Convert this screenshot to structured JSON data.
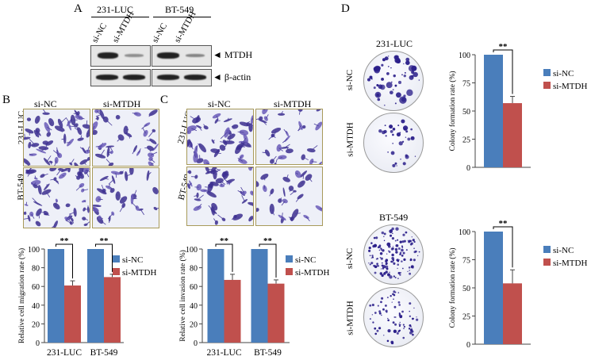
{
  "panels": {
    "a": "A",
    "b": "B",
    "c": "C",
    "d": "D"
  },
  "western": {
    "lines": [
      "231-LUC",
      "BT-549"
    ],
    "lanes": [
      "si-NC",
      "si-MTDH",
      "si-NC",
      "si-MTDH"
    ],
    "bands": [
      "◄ MTDH",
      "◄ β-actin"
    ]
  },
  "panel_b": {
    "conditions": [
      "si-NC",
      "si-MTDH"
    ],
    "rows": [
      "231-LUC",
      "BT-549"
    ]
  },
  "panel_c": {
    "conditions": [
      "si-NC",
      "si-MTDH"
    ],
    "rows": [
      "231-LUC",
      "BT-549"
    ]
  },
  "panel_d": {
    "top_title": "231-LUC",
    "bottom_title": "BT-549",
    "rows": [
      "si-NC",
      "si-MTDH"
    ]
  },
  "chart_data": [
    {
      "id": "migration",
      "type": "bar",
      "categories": [
        "231-LUC",
        "BT-549"
      ],
      "series": [
        {
          "name": "si-NC",
          "values": [
            100,
            100
          ],
          "errors": [
            0,
            0
          ],
          "color": "#4a7ebb"
        },
        {
          "name": "si-MTDH",
          "values": [
            61,
            70
          ],
          "errors": [
            5,
            3
          ],
          "color": "#c0504d"
        }
      ],
      "ylabel": "Relative  cell  migration  rate  (%)",
      "ylim": [
        0,
        100
      ],
      "yticks": [
        0,
        20,
        40,
        60,
        80,
        100
      ],
      "significance": [
        "**",
        "**"
      ]
    },
    {
      "id": "invasion",
      "type": "bar",
      "categories": [
        "231-LUC",
        "BT-549"
      ],
      "series": [
        {
          "name": "si-NC",
          "values": [
            100,
            100
          ],
          "errors": [
            0,
            0
          ],
          "color": "#4a7ebb"
        },
        {
          "name": "si-MTDH",
          "values": [
            67,
            63
          ],
          "errors": [
            6,
            4
          ],
          "color": "#c0504d"
        }
      ],
      "ylabel": "Relative  cell  invasion  rate  (%)",
      "ylim": [
        0,
        100
      ],
      "yticks": [
        0,
        20,
        40,
        60,
        80,
        100
      ],
      "significance": [
        "**",
        "**"
      ]
    },
    {
      "id": "colony_231",
      "type": "bar",
      "categories": [
        ""
      ],
      "series": [
        {
          "name": "si-NC",
          "values": [
            100
          ],
          "errors": [
            0
          ],
          "color": "#4a7ebb"
        },
        {
          "name": "si-MTDH",
          "values": [
            57
          ],
          "errors": [
            6
          ],
          "color": "#c0504d"
        }
      ],
      "ylabel": "Colony  formation  rate  (%)",
      "ylim": [
        0,
        100
      ],
      "yticks": [
        0,
        25,
        50,
        75,
        100
      ],
      "significance": [
        "**"
      ]
    },
    {
      "id": "colony_bt",
      "type": "bar",
      "categories": [
        ""
      ],
      "series": [
        {
          "name": "si-NC",
          "values": [
            100
          ],
          "errors": [
            0
          ],
          "color": "#4a7ebb"
        },
        {
          "name": "si-MTDH",
          "values": [
            54
          ],
          "errors": [
            12
          ],
          "color": "#c0504d"
        }
      ],
      "ylabel": "Colony  formation  rate  (%)",
      "ylim": [
        0,
        100
      ],
      "yticks": [
        0,
        25,
        50,
        75,
        100
      ],
      "significance": [
        "**"
      ]
    }
  ]
}
